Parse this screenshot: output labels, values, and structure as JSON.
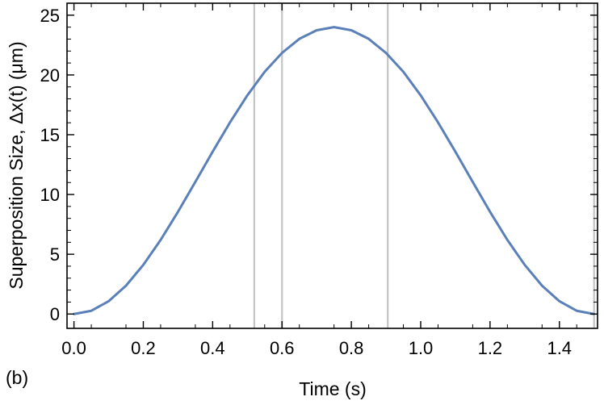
{
  "panel_label": "(b)",
  "chart_data": {
    "type": "line",
    "title": "",
    "xlabel": "Time (s)",
    "ylabel": "Superposition Size, Δx(t) (μm)",
    "xlim": [
      -0.02,
      1.51
    ],
    "ylim": [
      -1.2,
      26
    ],
    "xticks": [
      0.0,
      0.2,
      0.4,
      0.6,
      0.8,
      1.0,
      1.2,
      1.4
    ],
    "xtick_labels": [
      "0.0",
      "0.2",
      "0.4",
      "0.6",
      "0.8",
      "1.0",
      "1.2",
      "1.4"
    ],
    "yticks": [
      0,
      5,
      10,
      15,
      20,
      25
    ],
    "ytick_labels": [
      "0",
      "5",
      "10",
      "15",
      "20",
      "25"
    ],
    "grid": false,
    "vertical_lines": [
      0.52,
      0.6,
      0.905,
      1.5
    ],
    "series": [
      {
        "color": "#5b80b8",
        "x": [
          0.0,
          0.05,
          0.1,
          0.15,
          0.2,
          0.25,
          0.3,
          0.35,
          0.4,
          0.45,
          0.5,
          0.55,
          0.6,
          0.65,
          0.7,
          0.75,
          0.8,
          0.85,
          0.9,
          0.95,
          1.0,
          1.05,
          1.1,
          1.15,
          1.2,
          1.25,
          1.3,
          1.35,
          1.4,
          1.45,
          1.5
        ],
        "y": [
          0.0,
          0.27,
          1.07,
          2.37,
          4.11,
          6.2,
          8.55,
          11.05,
          13.58,
          16.03,
          18.29,
          20.26,
          21.84,
          23.02,
          23.74,
          24.0,
          23.74,
          23.02,
          21.84,
          20.26,
          18.29,
          16.03,
          13.58,
          11.05,
          8.55,
          6.2,
          4.11,
          2.37,
          1.07,
          0.27,
          0.0
        ]
      }
    ]
  }
}
